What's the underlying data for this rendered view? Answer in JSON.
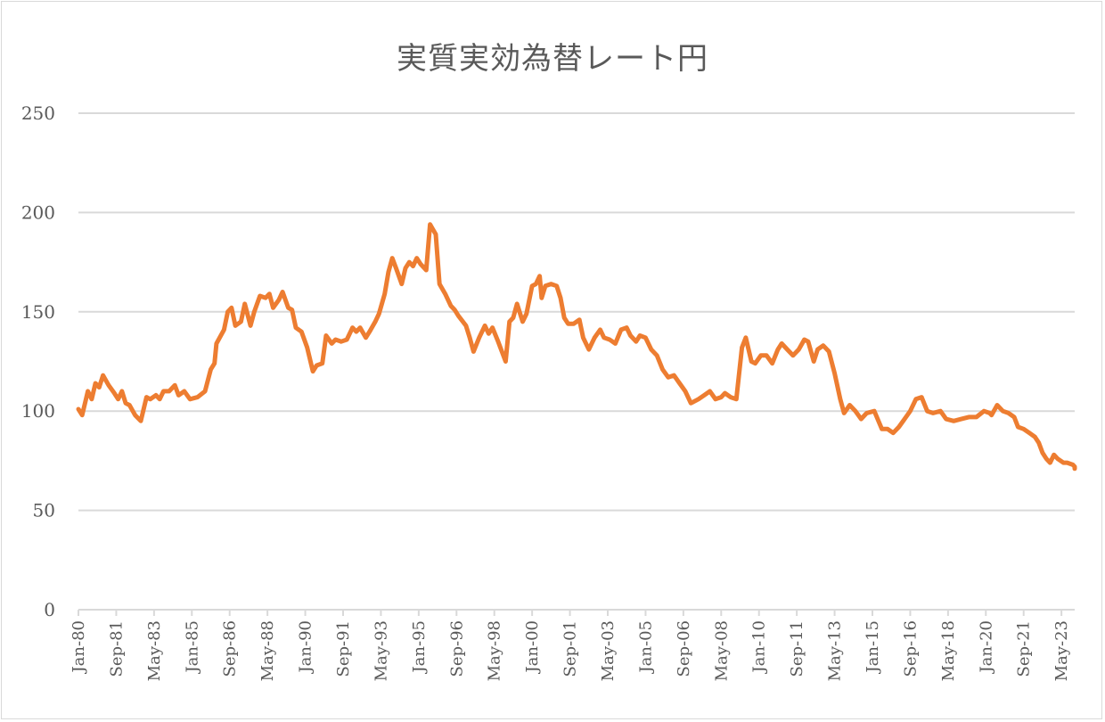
{
  "chart_data": {
    "type": "line",
    "title": "実質実効為替レート円",
    "xlabel": "",
    "ylabel": "",
    "ylim": [
      0,
      250
    ],
    "yticks": [
      0,
      50,
      100,
      150,
      200,
      250
    ],
    "grid": true,
    "legend": "none",
    "series_color": "#ED7D31",
    "x_tick_labels": [
      "Jan-80",
      "Sep-81",
      "May-83",
      "Jan-85",
      "Sep-86",
      "May-88",
      "Jan-90",
      "Sep-91",
      "May-93",
      "Jan-95",
      "Sep-96",
      "May-98",
      "Jan-00",
      "Sep-01",
      "May-03",
      "Jan-05",
      "Sep-06",
      "May-08",
      "Jan-10",
      "Sep-11",
      "May-13",
      "Jan-15",
      "Sep-16",
      "May-18",
      "Jan-20",
      "Sep-21",
      "May-23"
    ],
    "series": [
      {
        "name": "実質実効為替レート円",
        "points": [
          [
            "1980-01",
            101
          ],
          [
            "1980-03",
            98
          ],
          [
            "1980-06",
            110
          ],
          [
            "1980-08",
            106
          ],
          [
            "1980-10",
            114
          ],
          [
            "1980-12",
            112
          ],
          [
            "1981-02",
            118
          ],
          [
            "1981-05",
            113
          ],
          [
            "1981-08",
            109
          ],
          [
            "1981-10",
            106
          ],
          [
            "1981-12",
            110
          ],
          [
            "1982-02",
            104
          ],
          [
            "1982-04",
            103
          ],
          [
            "1982-07",
            98
          ],
          [
            "1982-10",
            95
          ],
          [
            "1983-01",
            107
          ],
          [
            "1983-03",
            106
          ],
          [
            "1983-06",
            108
          ],
          [
            "1983-08",
            106
          ],
          [
            "1983-10",
            110
          ],
          [
            "1984-01",
            110
          ],
          [
            "1984-04",
            113
          ],
          [
            "1984-06",
            108
          ],
          [
            "1984-09",
            110
          ],
          [
            "1984-12",
            106
          ],
          [
            "1985-04",
            107
          ],
          [
            "1985-08",
            110
          ],
          [
            "1985-11",
            121
          ],
          [
            "1986-01",
            124
          ],
          [
            "1986-02",
            134
          ],
          [
            "1986-06",
            141
          ],
          [
            "1986-08",
            150
          ],
          [
            "1986-10",
            152
          ],
          [
            "1986-12",
            143
          ],
          [
            "1987-03",
            145
          ],
          [
            "1987-05",
            154
          ],
          [
            "1987-08",
            143
          ],
          [
            "1987-10",
            150
          ],
          [
            "1988-01",
            158
          ],
          [
            "1988-04",
            157
          ],
          [
            "1988-06",
            159
          ],
          [
            "1988-08",
            152
          ],
          [
            "1988-11",
            156
          ],
          [
            "1989-01",
            160
          ],
          [
            "1989-04",
            152
          ],
          [
            "1989-06",
            151
          ],
          [
            "1989-08",
            142
          ],
          [
            "1989-11",
            140
          ],
          [
            "1990-02",
            132
          ],
          [
            "1990-05",
            120
          ],
          [
            "1990-07",
            123
          ],
          [
            "1990-10",
            124
          ],
          [
            "1990-12",
            138
          ],
          [
            "1991-03",
            134
          ],
          [
            "1991-05",
            136
          ],
          [
            "1991-08",
            135
          ],
          [
            "1991-11",
            136
          ],
          [
            "1992-02",
            142
          ],
          [
            "1992-04",
            140
          ],
          [
            "1992-06",
            142
          ],
          [
            "1992-09",
            137
          ],
          [
            "1992-11",
            140
          ],
          [
            "1993-02",
            145
          ],
          [
            "1993-04",
            149
          ],
          [
            "1993-07",
            159
          ],
          [
            "1993-09",
            170
          ],
          [
            "1993-11",
            177
          ],
          [
            "1994-01",
            172
          ],
          [
            "1994-04",
            164
          ],
          [
            "1994-06",
            172
          ],
          [
            "1994-08",
            175
          ],
          [
            "1994-10",
            173
          ],
          [
            "1994-12",
            177
          ],
          [
            "1995-02",
            174
          ],
          [
            "1995-05",
            171
          ],
          [
            "1995-07",
            194
          ],
          [
            "1995-10",
            189
          ],
          [
            "1995-12",
            164
          ],
          [
            "1996-03",
            159
          ],
          [
            "1996-06",
            153
          ],
          [
            "1996-08",
            151
          ],
          [
            "1996-10",
            148
          ],
          [
            "1997-02",
            143
          ],
          [
            "1997-04",
            137
          ],
          [
            "1997-06",
            130
          ],
          [
            "1997-09",
            137
          ],
          [
            "1997-12",
            143
          ],
          [
            "1998-02",
            139
          ],
          [
            "1998-04",
            142
          ],
          [
            "1998-07",
            135
          ],
          [
            "1998-09",
            130
          ],
          [
            "1998-11",
            125
          ],
          [
            "1999-01",
            145
          ],
          [
            "1999-03",
            147
          ],
          [
            "1999-05",
            154
          ],
          [
            "1999-08",
            145
          ],
          [
            "1999-10",
            149
          ],
          [
            "2000-01",
            163
          ],
          [
            "2000-03",
            164
          ],
          [
            "2000-05",
            168
          ],
          [
            "2000-06",
            157
          ],
          [
            "2000-08",
            163
          ],
          [
            "2000-11",
            164
          ],
          [
            "2001-02",
            163
          ],
          [
            "2001-04",
            157
          ],
          [
            "2001-06",
            147
          ],
          [
            "2001-08",
            144
          ],
          [
            "2001-11",
            144
          ],
          [
            "2002-02",
            146
          ],
          [
            "2002-04",
            137
          ],
          [
            "2002-07",
            131
          ],
          [
            "2002-10",
            137
          ],
          [
            "2003-01",
            141
          ],
          [
            "2003-03",
            137
          ],
          [
            "2003-06",
            136
          ],
          [
            "2003-09",
            134
          ],
          [
            "2003-12",
            141
          ],
          [
            "2004-03",
            142
          ],
          [
            "2004-05",
            138
          ],
          [
            "2004-08",
            135
          ],
          [
            "2004-10",
            138
          ],
          [
            "2005-01",
            137
          ],
          [
            "2005-04",
            131
          ],
          [
            "2005-07",
            128
          ],
          [
            "2005-10",
            121
          ],
          [
            "2006-01",
            117
          ],
          [
            "2006-04",
            118
          ],
          [
            "2006-07",
            114
          ],
          [
            "2006-10",
            110
          ],
          [
            "2007-01",
            104
          ],
          [
            "2007-05",
            106
          ],
          [
            "2007-08",
            108
          ],
          [
            "2007-11",
            110
          ],
          [
            "2008-02",
            106
          ],
          [
            "2008-05",
            107
          ],
          [
            "2008-07",
            109
          ],
          [
            "2008-10",
            107
          ],
          [
            "2009-01",
            106
          ],
          [
            "2009-04",
            132
          ],
          [
            "2009-06",
            137
          ],
          [
            "2009-09",
            125
          ],
          [
            "2009-11",
            124
          ],
          [
            "2010-02",
            128
          ],
          [
            "2010-05",
            128
          ],
          [
            "2010-08",
            124
          ],
          [
            "2010-11",
            131
          ],
          [
            "2011-01",
            134
          ],
          [
            "2011-04",
            131
          ],
          [
            "2011-07",
            128
          ],
          [
            "2011-10",
            131
          ],
          [
            "2012-01",
            136
          ],
          [
            "2012-03",
            135
          ],
          [
            "2012-06",
            125
          ],
          [
            "2012-08",
            131
          ],
          [
            "2012-11",
            133
          ],
          [
            "2013-02",
            130
          ],
          [
            "2013-05",
            119
          ],
          [
            "2013-08",
            106
          ],
          [
            "2013-10",
            99
          ],
          [
            "2014-01",
            103
          ],
          [
            "2014-04",
            100
          ],
          [
            "2014-07",
            96
          ],
          [
            "2014-10",
            99
          ],
          [
            "2015-02",
            100
          ],
          [
            "2015-06",
            91
          ],
          [
            "2015-09",
            91
          ],
          [
            "2015-12",
            89
          ],
          [
            "2016-03",
            92
          ],
          [
            "2016-06",
            96
          ],
          [
            "2016-09",
            100
          ],
          [
            "2016-12",
            106
          ],
          [
            "2017-03",
            107
          ],
          [
            "2017-06",
            100
          ],
          [
            "2017-09",
            99
          ],
          [
            "2018-01",
            100
          ],
          [
            "2018-04",
            96
          ],
          [
            "2018-08",
            95
          ],
          [
            "2018-12",
            96
          ],
          [
            "2019-04",
            97
          ],
          [
            "2019-08",
            97
          ],
          [
            "2019-12",
            100
          ],
          [
            "2020-03",
            99
          ],
          [
            "2020-04",
            98
          ],
          [
            "2020-07",
            103
          ],
          [
            "2020-10",
            100
          ],
          [
            "2021-01",
            99
          ],
          [
            "2021-04",
            97
          ],
          [
            "2021-06",
            92
          ],
          [
            "2021-09",
            91
          ],
          [
            "2021-12",
            89
          ],
          [
            "2022-03",
            87
          ],
          [
            "2022-05",
            84
          ],
          [
            "2022-07",
            79
          ],
          [
            "2022-09",
            76
          ],
          [
            "2022-11",
            74
          ],
          [
            "2023-01",
            78
          ],
          [
            "2023-03",
            76
          ],
          [
            "2023-06",
            74
          ],
          [
            "2023-08",
            74
          ],
          [
            "2023-11",
            73
          ],
          [
            "2024-04",
            72
          ],
          [
            "2024-07",
            71
          ]
        ]
      }
    ]
  }
}
